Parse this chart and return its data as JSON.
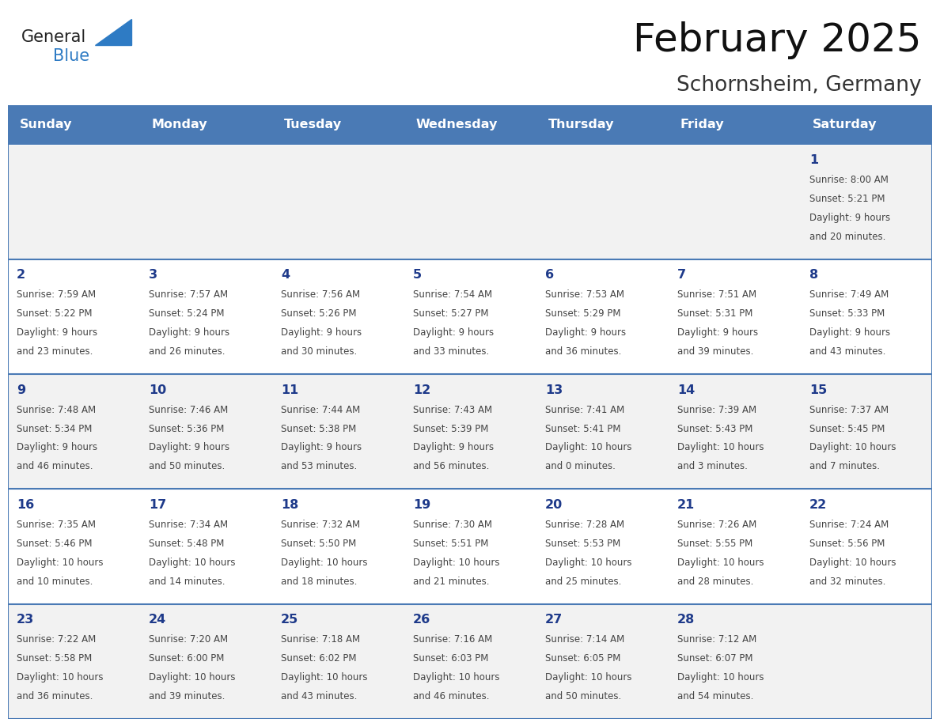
{
  "title": "February 2025",
  "subtitle": "Schornsheim, Germany",
  "days_of_week": [
    "Sunday",
    "Monday",
    "Tuesday",
    "Wednesday",
    "Thursday",
    "Friday",
    "Saturday"
  ],
  "header_bg": "#4a7ab5",
  "header_text": "#ffffff",
  "row_bg_odd": "#f2f2f2",
  "row_bg_even": "#ffffff",
  "cell_border": "#4a7ab5",
  "day_number_color": "#1e3a8a",
  "info_text_color": "#444444",
  "logo_general_color": "#222222",
  "logo_blue_color": "#2e7bc4",
  "calendar_data": [
    [
      null,
      null,
      null,
      null,
      null,
      null,
      {
        "day": 1,
        "sunrise": "8:00 AM",
        "sunset": "5:21 PM",
        "daylight": "9 hours\nand 20 minutes."
      }
    ],
    [
      {
        "day": 2,
        "sunrise": "7:59 AM",
        "sunset": "5:22 PM",
        "daylight": "9 hours\nand 23 minutes."
      },
      {
        "day": 3,
        "sunrise": "7:57 AM",
        "sunset": "5:24 PM",
        "daylight": "9 hours\nand 26 minutes."
      },
      {
        "day": 4,
        "sunrise": "7:56 AM",
        "sunset": "5:26 PM",
        "daylight": "9 hours\nand 30 minutes."
      },
      {
        "day": 5,
        "sunrise": "7:54 AM",
        "sunset": "5:27 PM",
        "daylight": "9 hours\nand 33 minutes."
      },
      {
        "day": 6,
        "sunrise": "7:53 AM",
        "sunset": "5:29 PM",
        "daylight": "9 hours\nand 36 minutes."
      },
      {
        "day": 7,
        "sunrise": "7:51 AM",
        "sunset": "5:31 PM",
        "daylight": "9 hours\nand 39 minutes."
      },
      {
        "day": 8,
        "sunrise": "7:49 AM",
        "sunset": "5:33 PM",
        "daylight": "9 hours\nand 43 minutes."
      }
    ],
    [
      {
        "day": 9,
        "sunrise": "7:48 AM",
        "sunset": "5:34 PM",
        "daylight": "9 hours\nand 46 minutes."
      },
      {
        "day": 10,
        "sunrise": "7:46 AM",
        "sunset": "5:36 PM",
        "daylight": "9 hours\nand 50 minutes."
      },
      {
        "day": 11,
        "sunrise": "7:44 AM",
        "sunset": "5:38 PM",
        "daylight": "9 hours\nand 53 minutes."
      },
      {
        "day": 12,
        "sunrise": "7:43 AM",
        "sunset": "5:39 PM",
        "daylight": "9 hours\nand 56 minutes."
      },
      {
        "day": 13,
        "sunrise": "7:41 AM",
        "sunset": "5:41 PM",
        "daylight": "10 hours\nand 0 minutes."
      },
      {
        "day": 14,
        "sunrise": "7:39 AM",
        "sunset": "5:43 PM",
        "daylight": "10 hours\nand 3 minutes."
      },
      {
        "day": 15,
        "sunrise": "7:37 AM",
        "sunset": "5:45 PM",
        "daylight": "10 hours\nand 7 minutes."
      }
    ],
    [
      {
        "day": 16,
        "sunrise": "7:35 AM",
        "sunset": "5:46 PM",
        "daylight": "10 hours\nand 10 minutes."
      },
      {
        "day": 17,
        "sunrise": "7:34 AM",
        "sunset": "5:48 PM",
        "daylight": "10 hours\nand 14 minutes."
      },
      {
        "day": 18,
        "sunrise": "7:32 AM",
        "sunset": "5:50 PM",
        "daylight": "10 hours\nand 18 minutes."
      },
      {
        "day": 19,
        "sunrise": "7:30 AM",
        "sunset": "5:51 PM",
        "daylight": "10 hours\nand 21 minutes."
      },
      {
        "day": 20,
        "sunrise": "7:28 AM",
        "sunset": "5:53 PM",
        "daylight": "10 hours\nand 25 minutes."
      },
      {
        "day": 21,
        "sunrise": "7:26 AM",
        "sunset": "5:55 PM",
        "daylight": "10 hours\nand 28 minutes."
      },
      {
        "day": 22,
        "sunrise": "7:24 AM",
        "sunset": "5:56 PM",
        "daylight": "10 hours\nand 32 minutes."
      }
    ],
    [
      {
        "day": 23,
        "sunrise": "7:22 AM",
        "sunset": "5:58 PM",
        "daylight": "10 hours\nand 36 minutes."
      },
      {
        "day": 24,
        "sunrise": "7:20 AM",
        "sunset": "6:00 PM",
        "daylight": "10 hours\nand 39 minutes."
      },
      {
        "day": 25,
        "sunrise": "7:18 AM",
        "sunset": "6:02 PM",
        "daylight": "10 hours\nand 43 minutes."
      },
      {
        "day": 26,
        "sunrise": "7:16 AM",
        "sunset": "6:03 PM",
        "daylight": "10 hours\nand 46 minutes."
      },
      {
        "day": 27,
        "sunrise": "7:14 AM",
        "sunset": "6:05 PM",
        "daylight": "10 hours\nand 50 minutes."
      },
      {
        "day": 28,
        "sunrise": "7:12 AM",
        "sunset": "6:07 PM",
        "daylight": "10 hours\nand 54 minutes."
      },
      null
    ]
  ]
}
